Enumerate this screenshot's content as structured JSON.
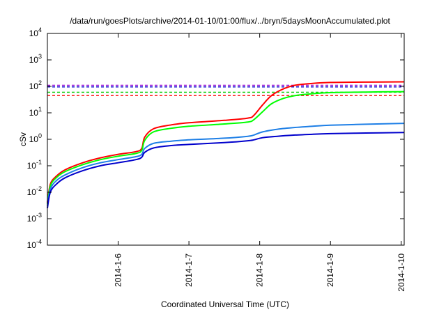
{
  "chart_data": {
    "type": "line",
    "title": "/data/run/goesPlots/archive/2014-01-10/01:00/flux/../bryn/5daysMoonAccumulated.plot",
    "xlabel": "Coordinated Universal Time (UTC)",
    "ylabel": "cSv",
    "yscale": "log",
    "ylim": [
      0.0001,
      10000
    ],
    "xlim": [
      "2014-01-05T00:00",
      "2014-01-10T01:00"
    ],
    "x_ticks": [
      {
        "value": "2014-01-06T00:00",
        "label": "2014-1-6"
      },
      {
        "value": "2014-01-07T00:00",
        "label": "2014-1-7"
      },
      {
        "value": "2014-01-08T00:00",
        "label": "2014-1-8"
      },
      {
        "value": "2014-01-09T00:00",
        "label": "2014-1-9"
      },
      {
        "value": "2014-01-10T00:00",
        "label": "2014-1-10"
      }
    ],
    "y_ticks": [
      {
        "value": 0.0001,
        "base": "10",
        "exp": "-4"
      },
      {
        "value": 0.001,
        "base": "10",
        "exp": "-3"
      },
      {
        "value": 0.01,
        "base": "10",
        "exp": "-2"
      },
      {
        "value": 0.1,
        "base": "10",
        "exp": "-1"
      },
      {
        "value": 1,
        "base": "10",
        "exp": "0"
      },
      {
        "value": 10,
        "base": "10",
        "exp": "1"
      },
      {
        "value": 100,
        "base": "10",
        "exp": "2"
      },
      {
        "value": 1000,
        "base": "10",
        "exp": "3"
      },
      {
        "value": 10000,
        "base": "10",
        "exp": "4"
      }
    ],
    "grid": false,
    "series": [
      {
        "color": "#ff0000",
        "points": [
          [
            "2014-01-05T00:00",
            0.004
          ],
          [
            "2014-01-05T01:00",
            0.02
          ],
          [
            "2014-01-05T03:00",
            0.04
          ],
          [
            "2014-01-05T06:00",
            0.07
          ],
          [
            "2014-01-05T12:00",
            0.13
          ],
          [
            "2014-01-05T18:00",
            0.2
          ],
          [
            "2014-01-06T00:00",
            0.27
          ],
          [
            "2014-01-06T06:00",
            0.34
          ],
          [
            "2014-01-06T08:00",
            0.45
          ],
          [
            "2014-01-06T09:00",
            1.2
          ],
          [
            "2014-01-06T12:00",
            2.5
          ],
          [
            "2014-01-06T18:00",
            3.5
          ],
          [
            "2014-01-07T00:00",
            4.2
          ],
          [
            "2014-01-07T12:00",
            5.2
          ],
          [
            "2014-01-07T20:00",
            6.3
          ],
          [
            "2014-01-07T22:00",
            8
          ],
          [
            "2014-01-08T01:00",
            20
          ],
          [
            "2014-01-08T04:00",
            45
          ],
          [
            "2014-01-08T08:00",
            80
          ],
          [
            "2014-01-08T12:00",
            110
          ],
          [
            "2014-01-08T18:00",
            130
          ],
          [
            "2014-01-09T00:00",
            140
          ],
          [
            "2014-01-09T12:00",
            145
          ],
          [
            "2014-01-10T01:00",
            148
          ]
        ]
      },
      {
        "color": "#00ff00",
        "points": [
          [
            "2014-01-05T00:00",
            0.0035
          ],
          [
            "2014-01-05T01:00",
            0.017
          ],
          [
            "2014-01-05T03:00",
            0.035
          ],
          [
            "2014-01-05T06:00",
            0.06
          ],
          [
            "2014-01-05T12:00",
            0.11
          ],
          [
            "2014-01-05T18:00",
            0.17
          ],
          [
            "2014-01-06T00:00",
            0.23
          ],
          [
            "2014-01-06T06:00",
            0.29
          ],
          [
            "2014-01-06T08:00",
            0.38
          ],
          [
            "2014-01-06T09:00",
            0.9
          ],
          [
            "2014-01-06T12:00",
            1.9
          ],
          [
            "2014-01-06T18:00",
            2.6
          ],
          [
            "2014-01-07T00:00",
            3.1
          ],
          [
            "2014-01-07T12:00",
            3.8
          ],
          [
            "2014-01-07T20:00",
            4.5
          ],
          [
            "2014-01-07T22:00",
            5.5
          ],
          [
            "2014-01-08T01:00",
            11
          ],
          [
            "2014-01-08T04:00",
            22
          ],
          [
            "2014-01-08T08:00",
            35
          ],
          [
            "2014-01-08T12:00",
            45
          ],
          [
            "2014-01-08T18:00",
            53
          ],
          [
            "2014-01-09T00:00",
            58
          ],
          [
            "2014-01-09T12:00",
            61
          ],
          [
            "2014-01-10T01:00",
            63
          ]
        ]
      },
      {
        "color": "#1e7fe6",
        "points": [
          [
            "2014-01-05T00:00",
            0.003
          ],
          [
            "2014-01-05T01:00",
            0.013
          ],
          [
            "2014-01-05T03:00",
            0.027
          ],
          [
            "2014-01-05T06:00",
            0.045
          ],
          [
            "2014-01-05T12:00",
            0.085
          ],
          [
            "2014-01-05T18:00",
            0.13
          ],
          [
            "2014-01-06T00:00",
            0.17
          ],
          [
            "2014-01-06T06:00",
            0.22
          ],
          [
            "2014-01-06T08:00",
            0.27
          ],
          [
            "2014-01-06T09:00",
            0.45
          ],
          [
            "2014-01-06T12:00",
            0.7
          ],
          [
            "2014-01-06T18:00",
            0.85
          ],
          [
            "2014-01-07T00:00",
            0.95
          ],
          [
            "2014-01-07T12:00",
            1.1
          ],
          [
            "2014-01-07T20:00",
            1.3
          ],
          [
            "2014-01-07T22:00",
            1.45
          ],
          [
            "2014-01-08T01:00",
            1.9
          ],
          [
            "2014-01-08T06:00",
            2.4
          ],
          [
            "2014-01-08T12:00",
            2.8
          ],
          [
            "2014-01-08T18:00",
            3.1
          ],
          [
            "2014-01-09T00:00",
            3.4
          ],
          [
            "2014-01-09T12:00",
            3.7
          ],
          [
            "2014-01-10T01:00",
            4
          ]
        ]
      },
      {
        "color": "#0000cc",
        "points": [
          [
            "2014-01-05T00:00",
            0.0025
          ],
          [
            "2014-01-05T01:00",
            0.01
          ],
          [
            "2014-01-05T03:00",
            0.02
          ],
          [
            "2014-01-05T06:00",
            0.035
          ],
          [
            "2014-01-05T12:00",
            0.065
          ],
          [
            "2014-01-05T18:00",
            0.1
          ],
          [
            "2014-01-06T00:00",
            0.13
          ],
          [
            "2014-01-06T06:00",
            0.17
          ],
          [
            "2014-01-06T08:00",
            0.21
          ],
          [
            "2014-01-06T09:00",
            0.32
          ],
          [
            "2014-01-06T12:00",
            0.47
          ],
          [
            "2014-01-06T18:00",
            0.58
          ],
          [
            "2014-01-07T00:00",
            0.64
          ],
          [
            "2014-01-07T12:00",
            0.75
          ],
          [
            "2014-01-07T20:00",
            0.88
          ],
          [
            "2014-01-07T22:00",
            0.95
          ],
          [
            "2014-01-08T01:00",
            1.15
          ],
          [
            "2014-01-08T06:00",
            1.3
          ],
          [
            "2014-01-08T12:00",
            1.45
          ],
          [
            "2014-01-08T18:00",
            1.55
          ],
          [
            "2014-01-09T00:00",
            1.63
          ],
          [
            "2014-01-09T12:00",
            1.72
          ],
          [
            "2014-01-10T01:00",
            1.8
          ]
        ]
      }
    ],
    "reference_lines": [
      {
        "color": "#9400d3",
        "value": 110,
        "style": "dashed"
      },
      {
        "color": "#0000cc",
        "value": 95,
        "style": "dashed"
      },
      {
        "color": "#00cc00",
        "value": 60,
        "style": "dashed"
      },
      {
        "color": "#ff0000",
        "value": 45,
        "style": "dashed"
      }
    ]
  }
}
